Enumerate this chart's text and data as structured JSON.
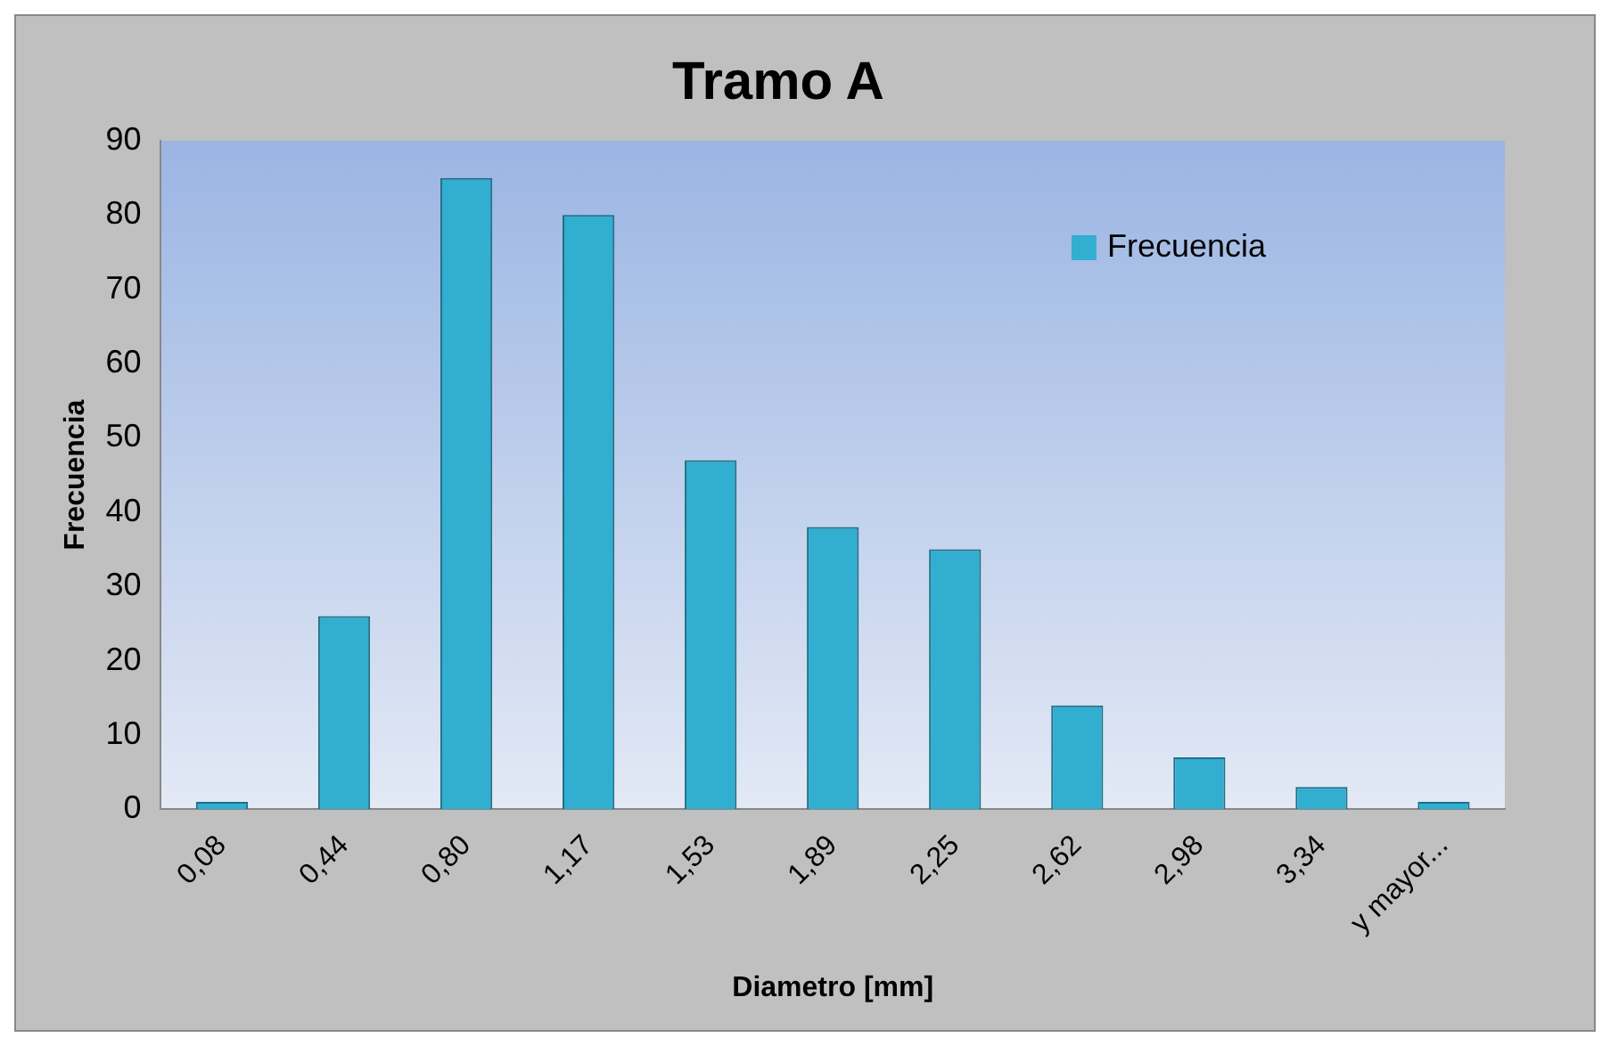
{
  "chart_data": {
    "type": "bar",
    "title": "Tramo A",
    "xlabel": "Diametro [mm]",
    "ylabel": "Frecuencia",
    "categories": [
      "0,08",
      "0,44",
      "0,80",
      "1,17",
      "1,53",
      "1,89",
      "2,25",
      "2,62",
      "2,98",
      "3,34",
      "y mayor..."
    ],
    "series": [
      {
        "name": "Frecuencia",
        "color": "#31aed0",
        "values": [
          1,
          26,
          85,
          80,
          47,
          38,
          35,
          14,
          7,
          3,
          1
        ]
      }
    ],
    "ylim": [
      0,
      90
    ],
    "yticks": [
      0,
      10,
      20,
      30,
      40,
      50,
      60,
      70,
      80,
      90
    ],
    "grid": false,
    "legend": "top right"
  }
}
